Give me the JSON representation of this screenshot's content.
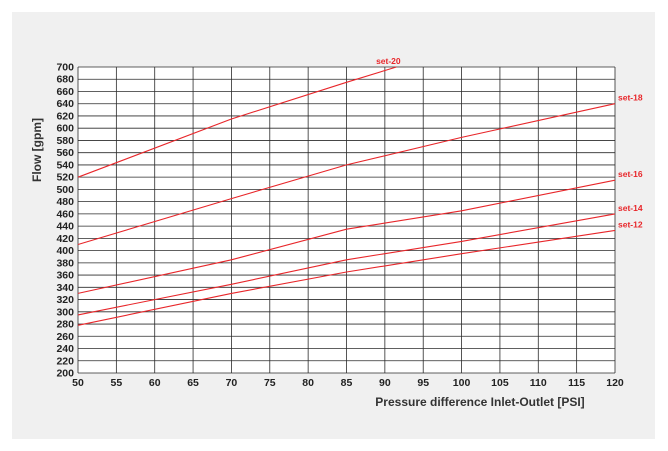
{
  "chart_data": {
    "type": "line",
    "title": "",
    "xlabel": "Pressure difference Inlet-Outlet [PSI]",
    "ylabel": "Flow [gpm]",
    "xlim": [
      50,
      120
    ],
    "ylim": [
      200,
      700
    ],
    "x_ticks": [
      50,
      55,
      60,
      65,
      70,
      75,
      80,
      85,
      90,
      95,
      100,
      105,
      110,
      115,
      120
    ],
    "y_ticks": [
      200,
      220,
      240,
      260,
      280,
      300,
      320,
      340,
      360,
      380,
      400,
      420,
      440,
      460,
      480,
      500,
      520,
      540,
      560,
      580,
      600,
      620,
      640,
      660,
      680,
      700
    ],
    "grid": true,
    "legend": "none",
    "line_color": "#e8262a",
    "series": [
      {
        "name": "set-20",
        "x": [
          50,
          70,
          85,
          91.5
        ],
        "y": [
          520,
          615,
          675,
          700
        ]
      },
      {
        "name": "set-18",
        "x": [
          50,
          70,
          85,
          100,
          120
        ],
        "y": [
          410,
          485,
          540,
          585,
          640
        ]
      },
      {
        "name": "set-16",
        "x": [
          50,
          70,
          85,
          100,
          120
        ],
        "y": [
          330,
          385,
          435,
          465,
          515
        ]
      },
      {
        "name": "set-14",
        "x": [
          50,
          70,
          85,
          100,
          120
        ],
        "y": [
          295,
          345,
          385,
          415,
          460
        ]
      },
      {
        "name": "set-12",
        "x": [
          50,
          70,
          85,
          100,
          120
        ],
        "y": [
          278,
          330,
          365,
          395,
          433
        ]
      }
    ]
  }
}
